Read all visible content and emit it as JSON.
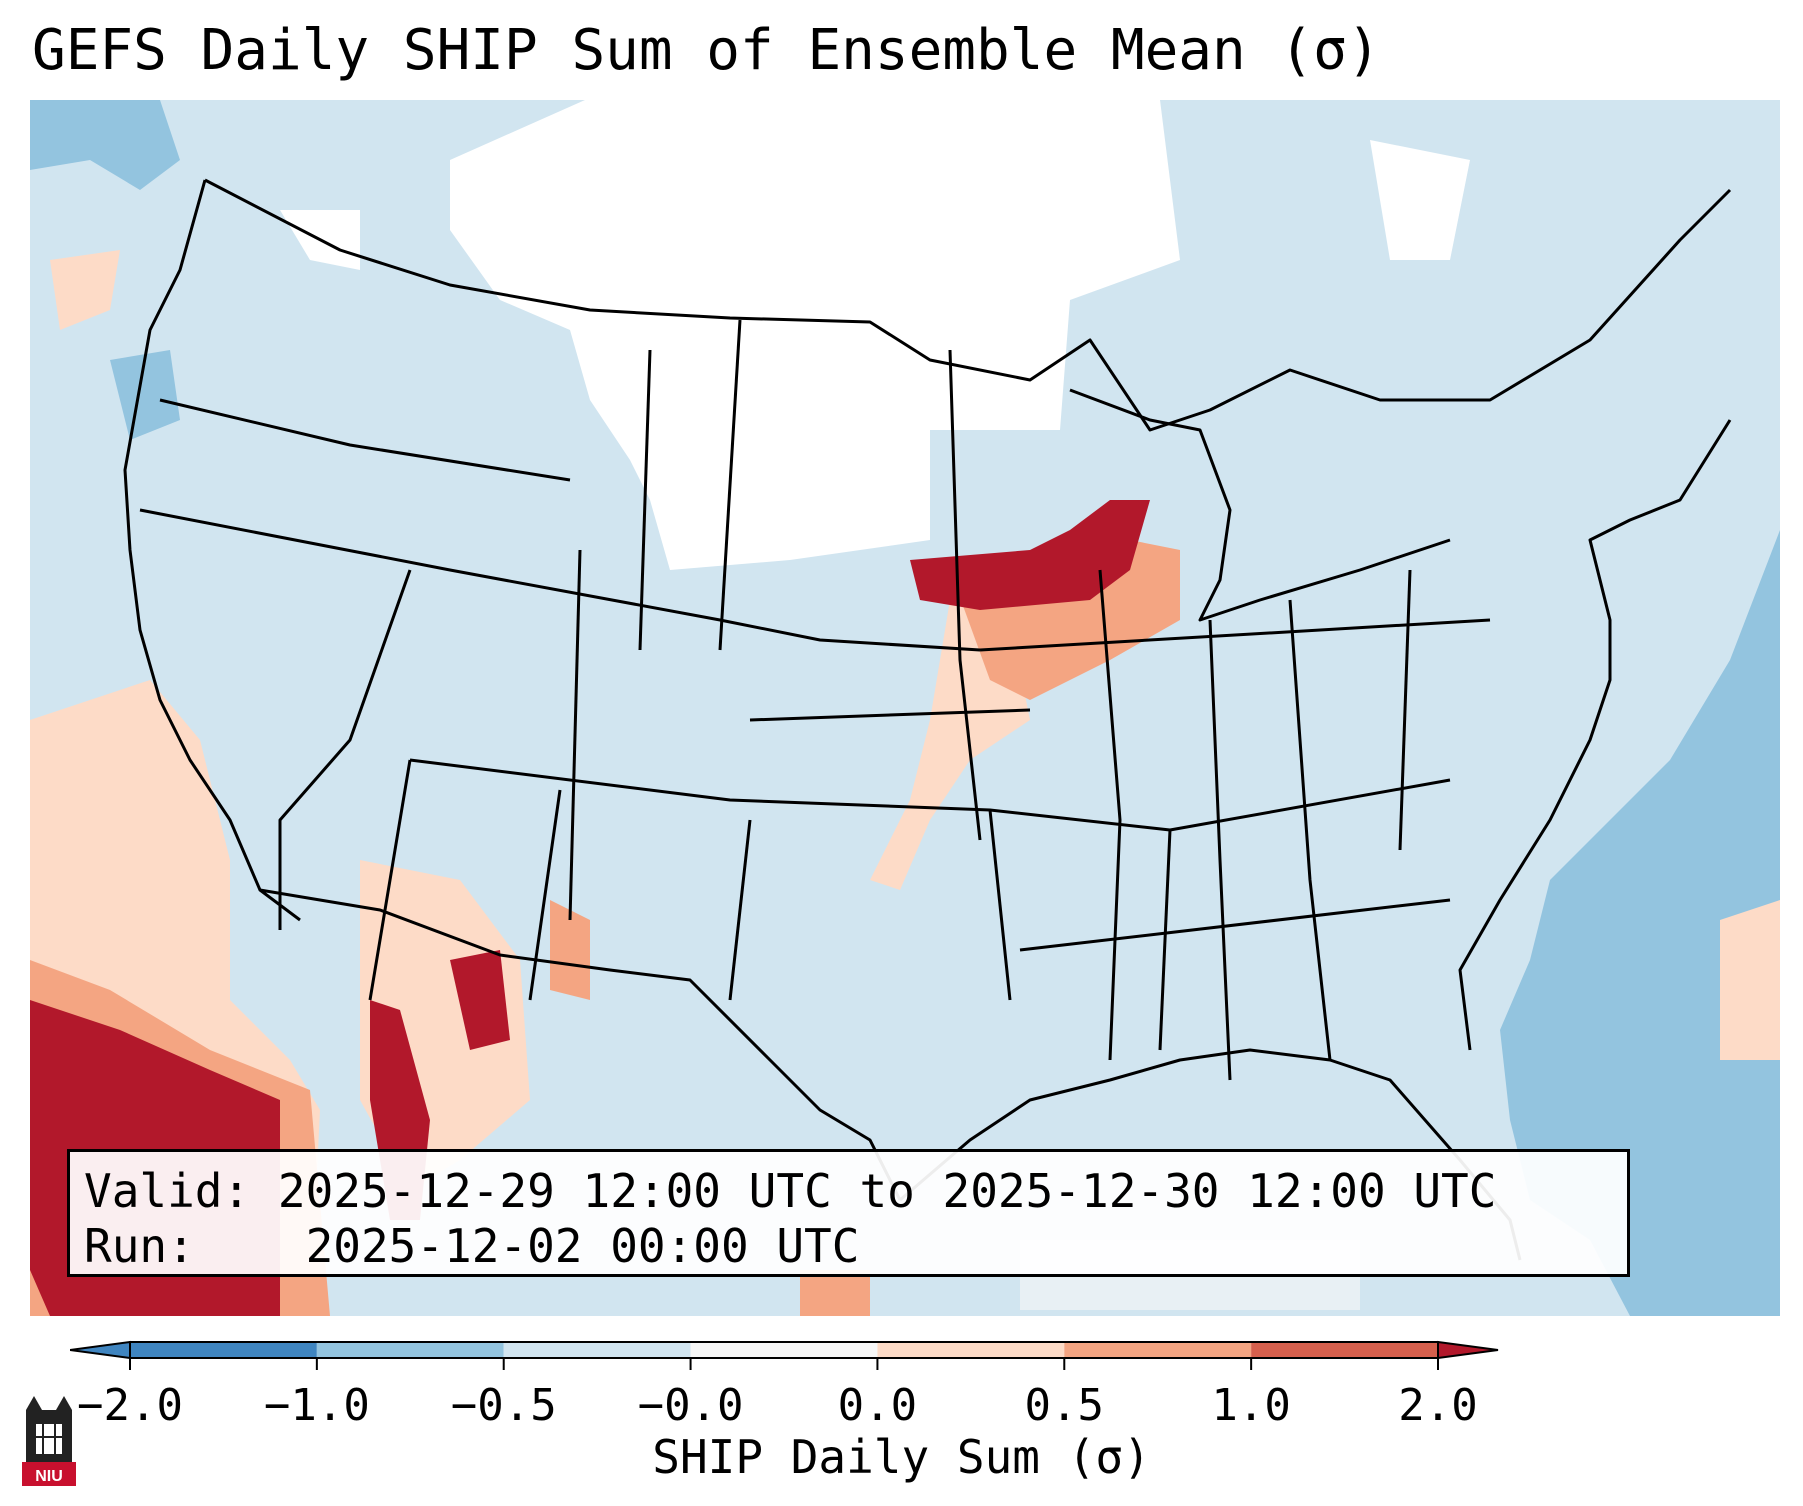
{
  "title": "GEFS Daily SHIP Sum of Ensemble Mean (σ)",
  "info": {
    "valid_label": "Valid:",
    "valid_value": "2025-12-29 12:00 UTC to 2025-12-30 12:00 UTC",
    "run_label": "Run:",
    "run_value": "2025-12-02 00:00 UTC"
  },
  "colorbar": {
    "label": "SHIP Daily Sum (σ)",
    "ticks": [
      "−2.0",
      "−1.0",
      "−0.5",
      "−0.0",
      "0.0",
      "0.5",
      "1.0",
      "2.0"
    ],
    "colors": [
      "#3f85c0",
      "#93c4df",
      "#d1e5f0",
      "#f7f7f7",
      "#fddbc7",
      "#f4a582",
      "#d6604d",
      "#b2182b"
    ],
    "extend": "both"
  },
  "map_colors": {
    "land_neutral": "#ffffff",
    "slightly_below": "#d1e5f0",
    "below": "#93c4df",
    "slightly_above": "#fddbc7",
    "above": "#f4a582",
    "well_above": "#d6604d",
    "far_above": "#b2182b",
    "border": "#000000"
  },
  "logo": {
    "text": "NIU",
    "name": "niu-logo"
  }
}
